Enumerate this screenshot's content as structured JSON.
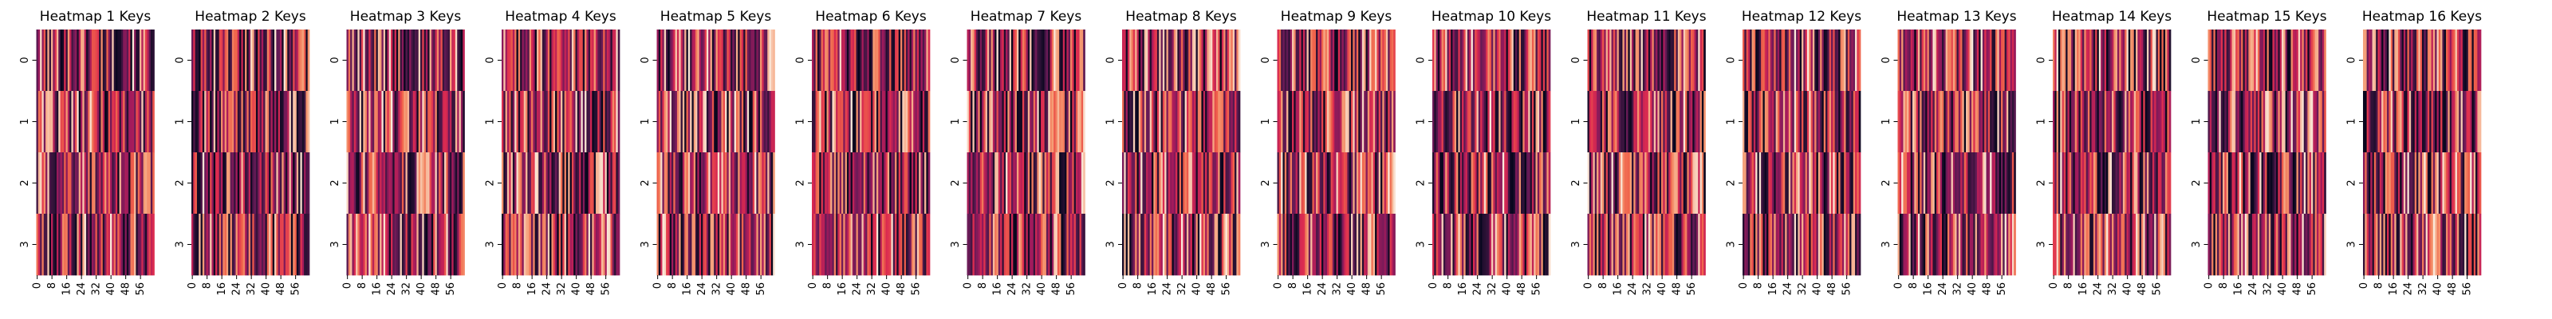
{
  "chart_data": {
    "type": "heatmap",
    "colormap": "rocket",
    "colorbar": false,
    "grid": false,
    "rows": 4,
    "cols": 64,
    "value_range": [
      0,
      1
    ],
    "y_tick_labels": [
      "0",
      "1",
      "2",
      "3"
    ],
    "x_tick_labels": [
      "0",
      "8",
      "16",
      "24",
      "32",
      "40",
      "48",
      "56"
    ],
    "x_tick_positions": [
      0,
      8,
      16,
      24,
      32,
      40,
      48,
      56
    ],
    "panels": [
      {
        "title": "Heatmap 1 Keys",
        "seed": 101
      },
      {
        "title": "Heatmap 2 Keys",
        "seed": 202
      },
      {
        "title": "Heatmap 3 Keys",
        "seed": 303
      },
      {
        "title": "Heatmap 4 Keys",
        "seed": 404
      },
      {
        "title": "Heatmap 5 Keys",
        "seed": 505
      },
      {
        "title": "Heatmap 6 Keys",
        "seed": 606
      },
      {
        "title": "Heatmap 7 Keys",
        "seed": 707
      },
      {
        "title": "Heatmap 8 Keys",
        "seed": 808
      },
      {
        "title": "Heatmap 9 Keys",
        "seed": 909
      },
      {
        "title": "Heatmap 10 Keys",
        "seed": 1010
      },
      {
        "title": "Heatmap 11 Keys",
        "seed": 1111
      },
      {
        "title": "Heatmap 12 Keys",
        "seed": 1212
      },
      {
        "title": "Heatmap 13 Keys",
        "seed": 1313
      },
      {
        "title": "Heatmap 14 Keys",
        "seed": 1414
      },
      {
        "title": "Heatmap 15 Keys",
        "seed": 1515
      },
      {
        "title": "Heatmap 16 Keys",
        "seed": 1616
      }
    ]
  }
}
